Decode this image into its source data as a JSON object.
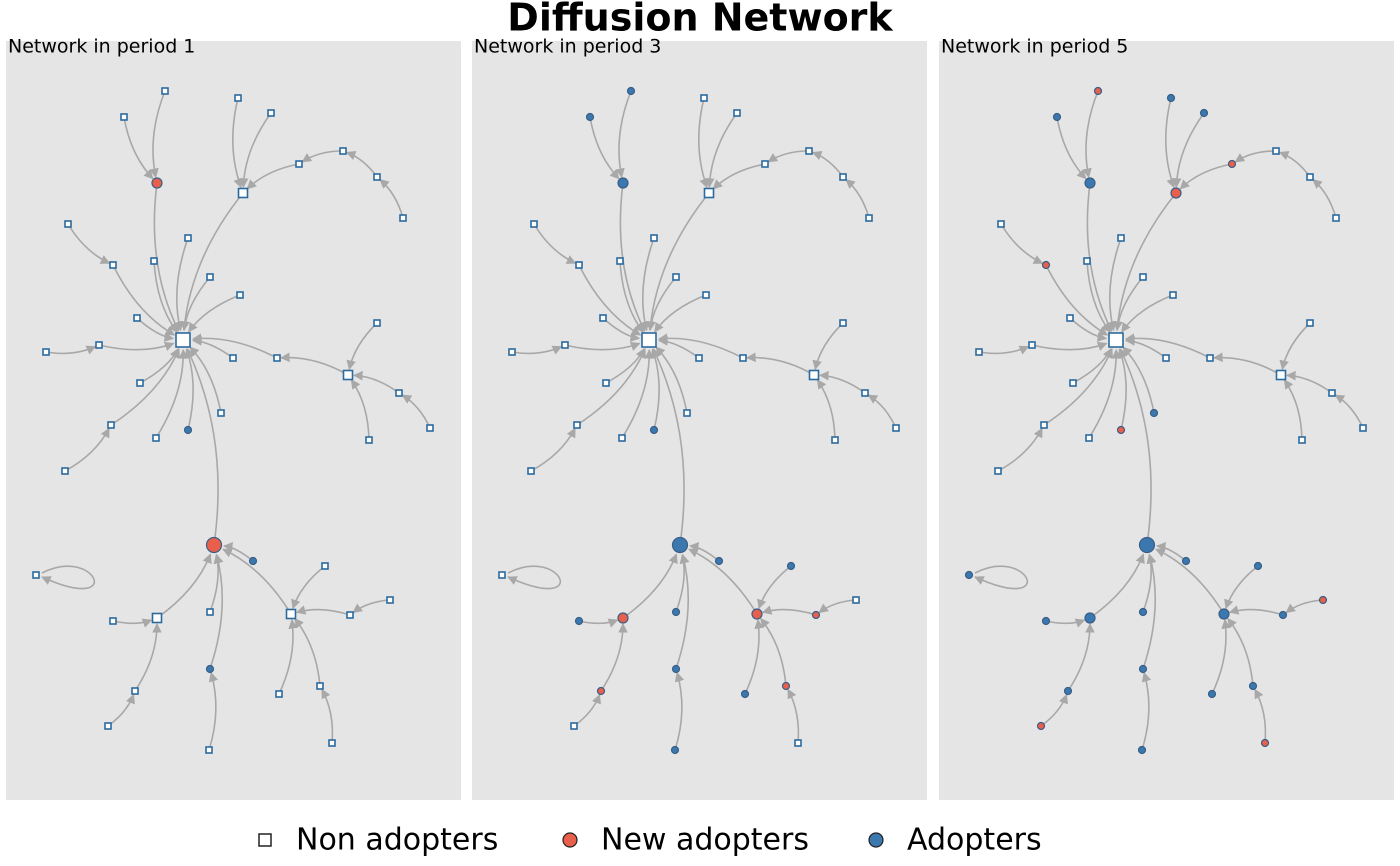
{
  "title": "Diffusion Network",
  "panels": [
    {
      "title": "Network in period 1"
    },
    {
      "title": "Network in period 3"
    },
    {
      "title": "Network in period 5"
    }
  ],
  "legend": [
    {
      "label": "Non adopters"
    },
    {
      "label": "New adopters"
    },
    {
      "label": "Adopters"
    }
  ]
}
